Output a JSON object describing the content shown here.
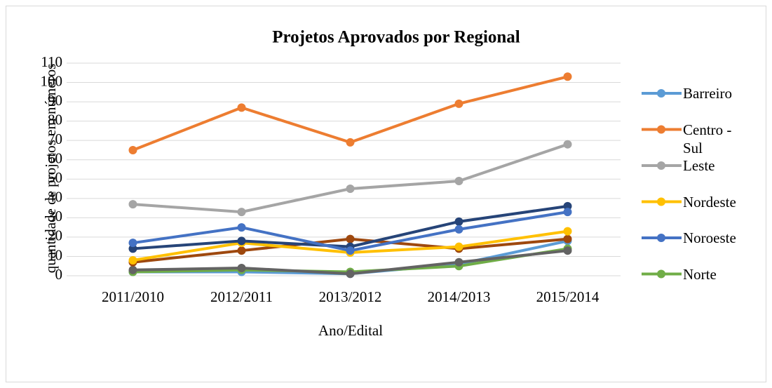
{
  "chart_data": {
    "type": "line",
    "title": "Projetos Aprovados por Regional",
    "x_label": "Ano/Edital",
    "y_label": "quantidade de projetos em números",
    "categories": [
      "2011/2010",
      "2012/2011",
      "2013/2012",
      "2014/2013",
      "2015/2014"
    ],
    "series": [
      {
        "name": "Barreiro",
        "color": "#5b9bd5",
        "values": [
          2,
          2,
          1,
          6,
          18
        ]
      },
      {
        "name": "Norte",
        "color": "#70ad47",
        "values": [
          2,
          3,
          2,
          5,
          14
        ]
      },
      {
        "color": "#636363",
        "values": [
          3,
          4,
          1,
          7,
          13
        ]
      },
      {
        "color": "#9e480e",
        "values": [
          7,
          13,
          19,
          14,
          19
        ]
      },
      {
        "name": "Nordeste",
        "color": "#ffc000",
        "values": [
          8,
          17,
          12,
          15,
          23
        ]
      },
      {
        "color": "#264478",
        "values": [
          14,
          18,
          15,
          28,
          36
        ]
      },
      {
        "name": "Noroeste",
        "color": "#4472c4",
        "values": [
          17,
          25,
          13,
          24,
          33
        ]
      },
      {
        "name": "Leste",
        "color": "#a5a5a5",
        "values": [
          37,
          33,
          45,
          49,
          68
        ]
      },
      {
        "name": "Centro - Sul",
        "color": "#ed7d31",
        "values": [
          65,
          87,
          69,
          89,
          103
        ]
      }
    ],
    "legend_order": [
      0,
      8,
      7,
      4,
      6,
      1
    ],
    "ylim": [
      0,
      110
    ],
    "yticks": [
      0,
      10,
      20,
      30,
      40,
      50,
      60,
      70,
      80,
      90,
      100,
      110
    ],
    "grid": true,
    "legend": "right"
  }
}
